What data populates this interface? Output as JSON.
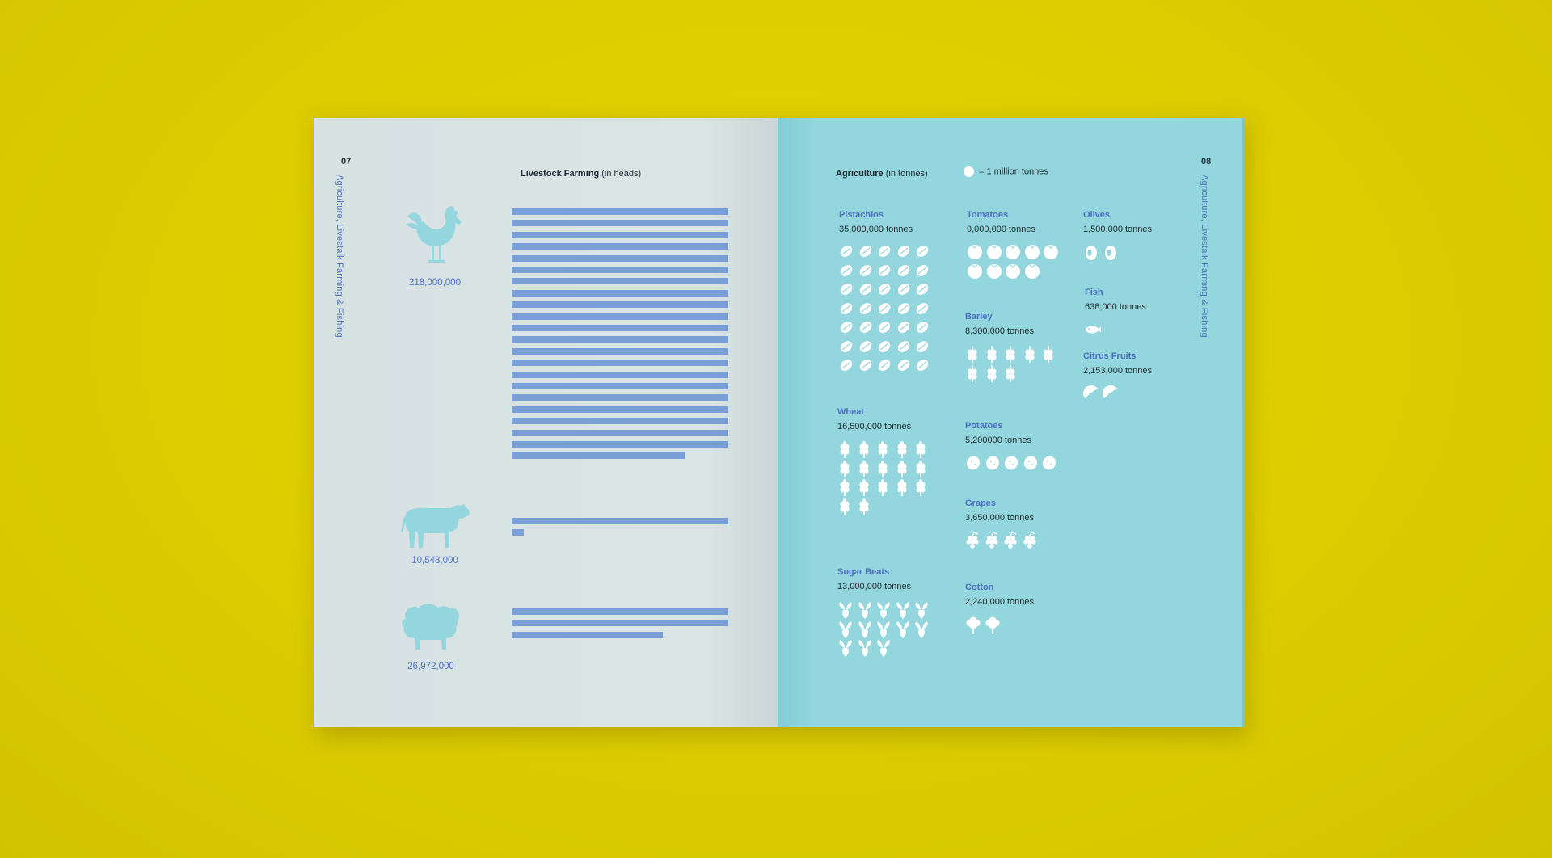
{
  "left_page": {
    "number": "07",
    "side_label": "Agriculture, Livestalk Farming & Fishing",
    "title_bold": "Livestock Farming",
    "title_unit": "(in heads)",
    "animals": [
      {
        "name": "rooster",
        "icon": "rooster-icon",
        "value": "218,000,000",
        "heads": 218000000
      },
      {
        "name": "cow",
        "icon": "cow-icon",
        "value": "10,548,000",
        "heads": 10548000
      },
      {
        "name": "sheep",
        "icon": "sheep-icon",
        "value": "26,972,000",
        "heads": 26972000
      }
    ]
  },
  "right_page": {
    "number": "08",
    "side_label": "Agriculture, Livestalk Farming & Fishing",
    "title_bold": "Agriculture",
    "title_unit": "(in tonnes)",
    "legend": "= 1 million tonnes",
    "crops": [
      {
        "name": "Pistachios",
        "amount": "35,000,000 tonnes",
        "icon": "pistachio-icon",
        "count": 35
      },
      {
        "name": "Wheat",
        "amount": "16,500,000 tonnes",
        "icon": "wheat-icon",
        "count": 16.5
      },
      {
        "name": "Sugar Beats",
        "amount": "13,000,000 tonnes",
        "icon": "sugar-beet-icon",
        "count": 13
      },
      {
        "name": "Tomatoes",
        "amount": "9,000,000 tonnes",
        "icon": "tomato-icon",
        "count": 9
      },
      {
        "name": "Barley",
        "amount": "8,300,000 tonnes",
        "icon": "barley-icon",
        "count": 8.3
      },
      {
        "name": "Potatoes",
        "amount": "5,200000 tonnes",
        "icon": "potato-icon",
        "count": 5.2
      },
      {
        "name": "Grapes",
        "amount": "3,650,000 tonnes",
        "icon": "grapes-icon",
        "count": 3.65
      },
      {
        "name": "Cotton",
        "amount": "2,240,000 tonnes",
        "icon": "cotton-icon",
        "count": 2.24
      },
      {
        "name": "Olives",
        "amount": "1,500,000 tonnes",
        "icon": "olive-icon",
        "count": 1.5
      },
      {
        "name": "Fish",
        "amount": "638,000 tonnes",
        "icon": "fish-icon",
        "count": 0.638
      },
      {
        "name": "Citrus Fruits",
        "amount": "2,153,000 tonnes",
        "icon": "citrus-icon",
        "count": 2.153
      }
    ]
  },
  "colors": {
    "background": "#dccd00",
    "left_page": "#dae4e5",
    "right_page": "#93d6dd",
    "bars": "#7a9ed6",
    "accent_text": "#4c6fc0",
    "icons_left": "#93d6dd",
    "icons_right": "#ffffff"
  }
}
